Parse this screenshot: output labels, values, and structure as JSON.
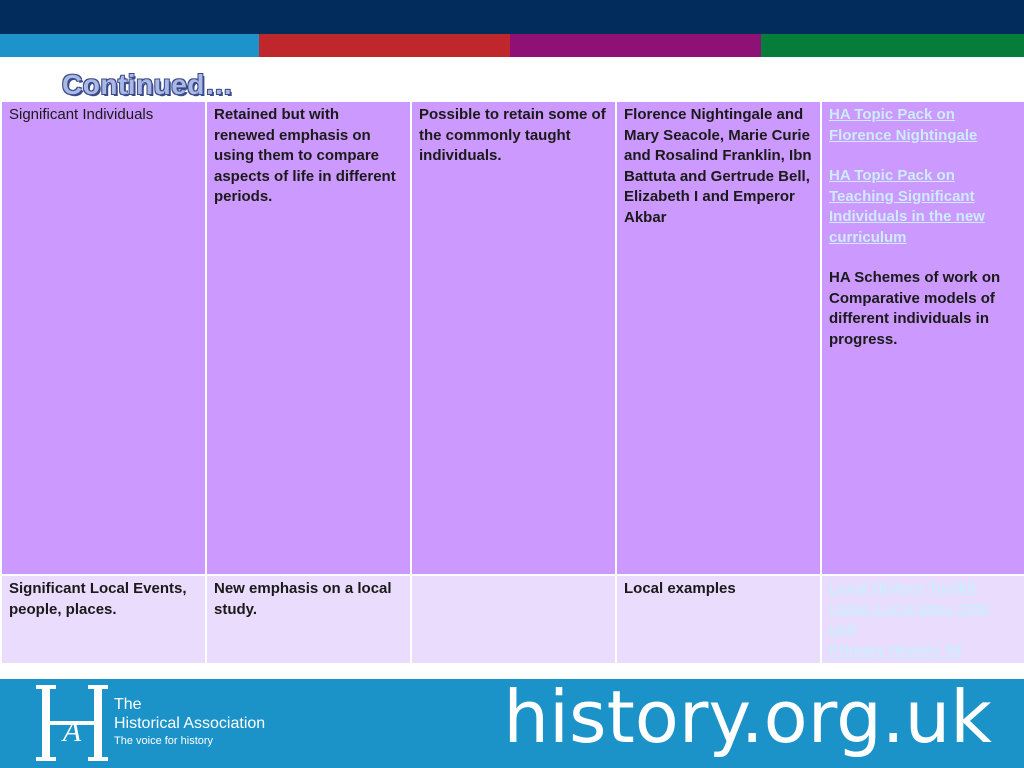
{
  "slide": {
    "title": "Continued…"
  },
  "table": {
    "rows": [
      {
        "c1": "Significant Individuals",
        "c2": "Retained but with renewed emphasis on using them to compare aspects of life in different periods.",
        "c3": "Possible to retain some of the commonly taught individuals.",
        "c4": "Florence Nightingale and Mary Seacole, Marie Curie and Rosalind Franklin, Ibn Battuta and Gertrude Bell, Elizabeth I and Emperor Akbar",
        "c5": {
          "link1": "HA Topic Pack on Florence Nightingale",
          "link2": "HA Topic Pack on Teaching Significant Individuals in the new curriculum",
          "text": "HA Schemes of work on Comparative models of different individuals in progress."
        }
      },
      {
        "c1": "Significant Local Events, people, places.",
        "c2": "New emphasis on a local study.",
        "c3": "",
        "c4": "Local examples",
        "c5": {
          "link1": "Local History Toolkit",
          "link2": "Using Local Sites CPD unit",
          "link3": "Primary History 55"
        }
      }
    ]
  },
  "footer": {
    "org_line1": "The",
    "org_line2": "Historical Association",
    "tagline": "The voice for history",
    "url": "history.org.uk",
    "logo_letters": "HA"
  },
  "colors": {
    "navy": "#012c5c",
    "stripe_blue": "#1e93c9",
    "stripe_red": "#c0272d",
    "stripe_purple": "#8e1275",
    "stripe_green": "#067d3a",
    "row_purple": "#cc99ff",
    "row_lilac": "#eadcfc",
    "footer_blue": "#1b93c9"
  }
}
